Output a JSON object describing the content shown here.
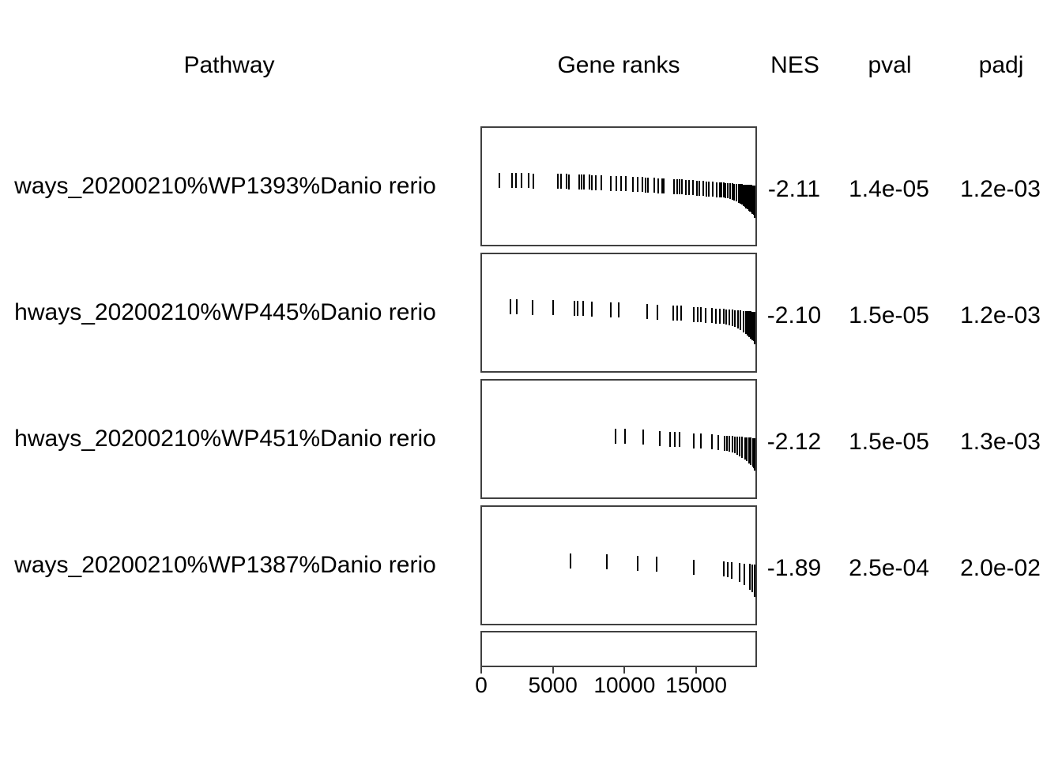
{
  "headers": {
    "pathway": "Pathway",
    "gene_ranks": "Gene ranks",
    "nes": "NES",
    "pval": "pval",
    "padj": "padj"
  },
  "colors": {
    "background": "#ffffff",
    "text": "#000000",
    "box_border": "#404040",
    "rank_tick": "#000000"
  },
  "chart_data": {
    "type": "table",
    "title": "",
    "subtitle": "fgsea enrichment table: pathway, gene rank tick plot, NES, pval, padj",
    "columns": [
      "Pathway",
      "Gene ranks",
      "NES",
      "pval",
      "padj"
    ],
    "x_axis": {
      "label": "",
      "range": [
        0,
        19300
      ],
      "ticks": [
        {
          "label": "0",
          "value": 0
        },
        {
          "label": "5000",
          "value": 5000
        },
        {
          "label": "10000",
          "value": 10000
        },
        {
          "label": "15000",
          "value": 15000
        }
      ]
    },
    "legend": null,
    "grid": false,
    "pathways": [
      {
        "name": "ways_20200210%WP1393%Danio rerio",
        "nes": "-2.11",
        "pval": "1.4e-05",
        "padj": "1.2e-03",
        "gene_ranks": [
          1150,
          2040,
          2315,
          2760,
          3250,
          3580,
          5290,
          5510,
          5900,
          6060,
          6830,
          7000,
          7160,
          7550,
          7700,
          7990,
          8380,
          9040,
          9400,
          9750,
          10100,
          10580,
          10960,
          11250,
          11500,
          11680,
          12120,
          12400,
          12670,
          12780,
          13500,
          13700,
          13880,
          14050,
          14330,
          14540,
          14820,
          15100,
          15260,
          15550,
          15810,
          15980,
          16250,
          16520,
          16750,
          16850,
          17000,
          17150,
          17300,
          17450,
          17600,
          17750,
          17900,
          18050,
          18180,
          18300,
          18400,
          18500,
          18600,
          18700,
          18800,
          18880,
          18960,
          19040,
          19120,
          19180,
          19240,
          19290
        ]
      },
      {
        "name": "hways_20200210%WP445%Danio rerio",
        "nes": "-2.10",
        "pval": "1.5e-05",
        "padj": "1.2e-03",
        "gene_ranks": [
          1930,
          2420,
          3520,
          4960,
          6450,
          6720,
          7100,
          7720,
          9040,
          9590,
          11580,
          12340,
          13440,
          13700,
          13980,
          14890,
          15150,
          15380,
          15710,
          16200,
          16480,
          16750,
          17000,
          17200,
          17400,
          17600,
          17800,
          18000,
          18200,
          18400,
          18560,
          18700,
          18820,
          18930,
          19030,
          19120,
          19200,
          19260,
          19300
        ]
      },
      {
        "name": "hways_20200210%WP451%Danio rerio",
        "nes": "-2.12",
        "pval": "1.5e-05",
        "padj": "1.3e-03",
        "gene_ranks": [
          9370,
          10030,
          11300,
          12500,
          13230,
          13560,
          13880,
          14880,
          15380,
          16200,
          16650,
          17080,
          17250,
          17420,
          17600,
          17780,
          17960,
          18140,
          18320,
          18500,
          18650,
          18800,
          18930,
          19050,
          19150,
          19230,
          19290
        ]
      },
      {
        "name": "ways_20200210%WP1387%Danio rerio",
        "nes": "-1.89",
        "pval": "2.5e-04",
        "padj": "2.0e-02",
        "gene_ranks": [
          6170,
          8760,
          10910,
          12290,
          14880,
          17020,
          17300,
          17570,
          18120,
          18450,
          18840,
          19010,
          19180,
          19290
        ]
      }
    ]
  }
}
